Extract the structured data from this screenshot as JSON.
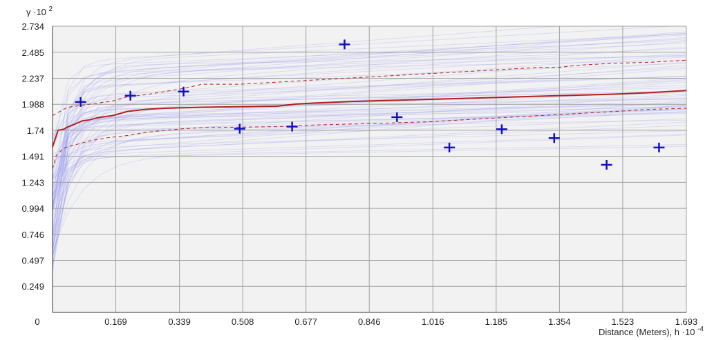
{
  "chart_data": {
    "type": "scatter",
    "xlabel": "Distance (Meters), h",
    "x_multiplier": "·10",
    "x_exponent": "-4",
    "ylabel": "γ",
    "y_multiplier": "·10",
    "y_exponent": "2",
    "xlim": [
      0,
      1.693
    ],
    "ylim": [
      0,
      2.734
    ],
    "x_ticks": [
      "0.169",
      "0.339",
      "0.508",
      "0.677",
      "0.846",
      "1.016",
      "1.185",
      "1.354",
      "1.523",
      "1.693"
    ],
    "x_tick_values": [
      0.169,
      0.339,
      0.508,
      0.677,
      0.846,
      1.016,
      1.185,
      1.354,
      1.523,
      1.693
    ],
    "x_origin_label": "0",
    "y_ticks": [
      "0.249",
      "0.497",
      "0.746",
      "0.994",
      "1.243",
      "1.491",
      "1.74",
      "1.988",
      "2.237",
      "2.485",
      "2.734"
    ],
    "y_tick_values": [
      0.249,
      0.497,
      0.746,
      0.994,
      1.243,
      1.491,
      1.74,
      1.988,
      2.237,
      2.485,
      2.734
    ],
    "grid": true,
    "colors": {
      "background": "#f2f2f2",
      "grid": "#a0a0a0",
      "points": "#1010c0",
      "envelope_lines": "#8a8af0",
      "model_line": "#b02020"
    },
    "series": [
      {
        "kind": "points",
        "x": [
          0.075,
          0.208,
          0.35,
          0.5,
          0.64,
          0.78,
          0.92,
          1.06,
          1.2,
          1.34,
          1.48,
          1.62
        ],
        "y": [
          2.01,
          2.07,
          2.11,
          1.755,
          1.775,
          2.56,
          1.865,
          1.575,
          1.75,
          1.665,
          1.41,
          1.575
        ]
      },
      {
        "kind": "model",
        "x": [
          0,
          0.015,
          0.03,
          0.04,
          0.06,
          0.08,
          0.1,
          0.12,
          0.16,
          0.2,
          0.25,
          0.3,
          0.35,
          0.4,
          0.5,
          0.6,
          0.65,
          0.7,
          0.8,
          0.9,
          1.0,
          1.1,
          1.2,
          1.3,
          1.4,
          1.5,
          1.6,
          1.693
        ],
        "y": [
          1.58,
          1.74,
          1.75,
          1.77,
          1.8,
          1.83,
          1.84,
          1.86,
          1.88,
          1.92,
          1.94,
          1.95,
          1.955,
          1.96,
          1.965,
          1.97,
          1.99,
          2.0,
          2.015,
          2.025,
          2.035,
          2.045,
          2.055,
          2.065,
          2.075,
          2.085,
          2.1,
          2.12
        ]
      },
      {
        "kind": "upper-envelope",
        "x": [
          0,
          0.04,
          0.08,
          0.12,
          0.16,
          0.2,
          0.25,
          0.3,
          0.35,
          0.4,
          0.45,
          0.5,
          0.6,
          0.7,
          0.8,
          0.9,
          1.0,
          1.1,
          1.2,
          1.3,
          1.35,
          1.4,
          1.5,
          1.6,
          1.693
        ],
        "y": [
          1.88,
          1.96,
          1.98,
          2.0,
          2.02,
          2.06,
          2.08,
          2.11,
          2.14,
          2.18,
          2.18,
          2.18,
          2.2,
          2.22,
          2.24,
          2.26,
          2.28,
          2.3,
          2.32,
          2.34,
          2.34,
          2.36,
          2.38,
          2.39,
          2.41
        ]
      },
      {
        "kind": "lower-envelope",
        "x": [
          0,
          0.01,
          0.03,
          0.06,
          0.1,
          0.15,
          0.2,
          0.25,
          0.3,
          0.35,
          0.4,
          0.5,
          0.6,
          0.7,
          0.8,
          0.9,
          1.0,
          1.1,
          1.2,
          1.3,
          1.4,
          1.5,
          1.6,
          1.693
        ],
        "y": [
          1.37,
          1.5,
          1.57,
          1.6,
          1.64,
          1.67,
          1.69,
          1.72,
          1.74,
          1.755,
          1.765,
          1.77,
          1.775,
          1.79,
          1.8,
          1.81,
          1.82,
          1.84,
          1.86,
          1.88,
          1.9,
          1.92,
          1.94,
          1.95
        ]
      }
    ]
  }
}
